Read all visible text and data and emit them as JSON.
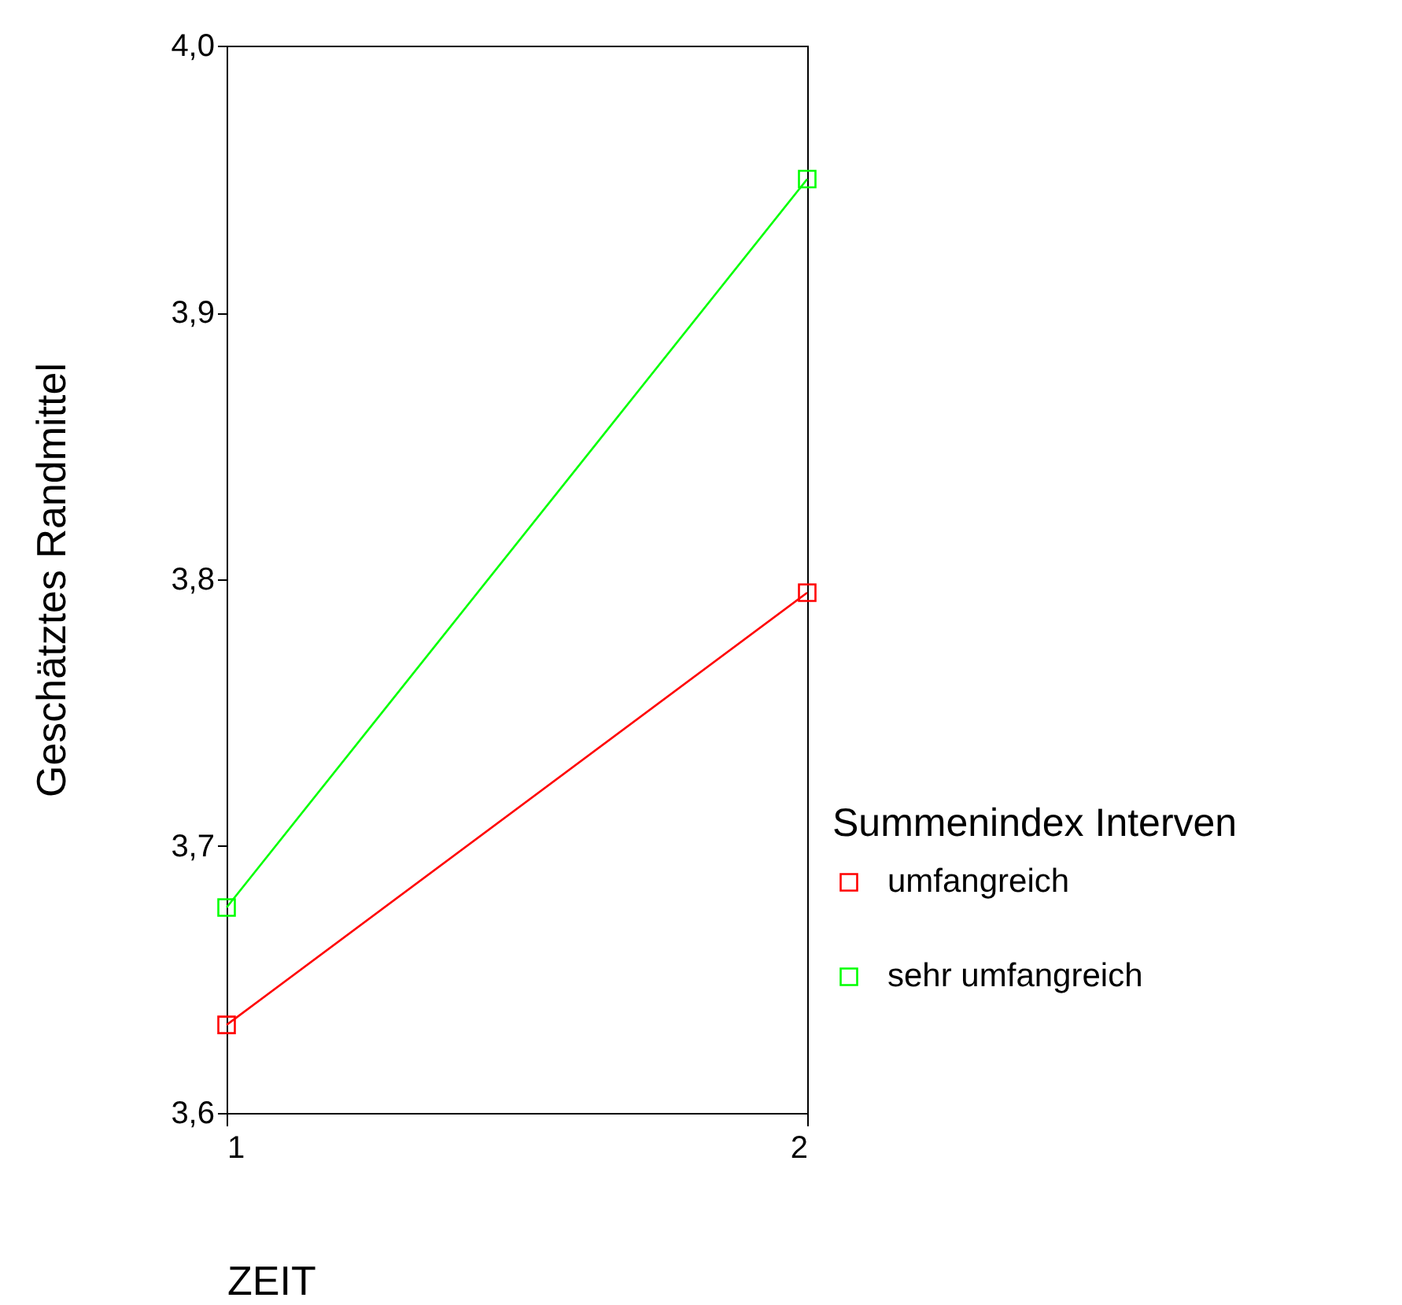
{
  "chart_data": {
    "type": "line",
    "xlabel": "ZEIT",
    "ylabel": "Geschätztes Randmittel",
    "legend_title": "Summenindex Interven",
    "x": [
      1,
      2
    ],
    "xlim": [
      1,
      2
    ],
    "xticks": [
      1,
      2
    ],
    "ylim": [
      3.6,
      4.0
    ],
    "yticks": [
      {
        "value": 3.6,
        "label": "3,6"
      },
      {
        "value": 3.7,
        "label": "3,7"
      },
      {
        "value": 3.8,
        "label": "3,8"
      },
      {
        "value": 3.9,
        "label": "3,9"
      },
      {
        "value": 4.0,
        "label": "4,0"
      }
    ],
    "series": [
      {
        "name": "umfangreich",
        "color": "#ff0000",
        "values": [
          3.633,
          3.795
        ]
      },
      {
        "name": "sehr umfangreich",
        "color": "#00ff00",
        "values": [
          3.677,
          3.95
        ]
      }
    ],
    "grid": false,
    "legend": "right",
    "marker": "square"
  }
}
